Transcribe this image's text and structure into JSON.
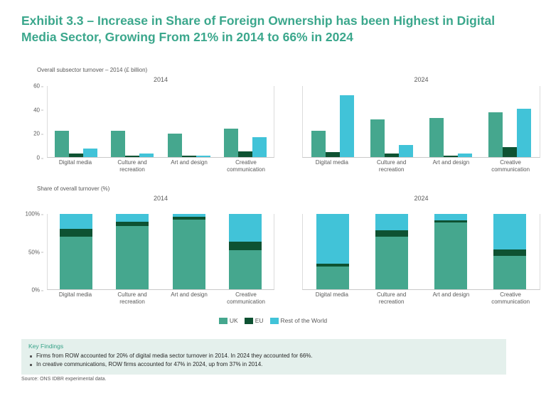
{
  "title": "Exhibit 3.3 – Increase in Share of Foreign Ownership has been Highest in Digital Media Sector, Growing From 21% in 2014 to 66% in 2024",
  "colors": {
    "title_accent": "#3BA78C",
    "uk": "#45A78E",
    "eu": "#0E5232",
    "rest_of_world": "#41C3D8",
    "key_findings_background": "#E4F0EC",
    "axis_text": "#595959"
  },
  "legend": [
    {
      "name": "UK",
      "color": "#45A78E"
    },
    {
      "name": "EU",
      "color": "#0E5232"
    },
    {
      "name": "Rest of the World",
      "color": "#41C3D8"
    }
  ],
  "chart_data": [
    {
      "type": "bar",
      "title": "Overall subsector turnover – 2014 (£ billion)",
      "categories": [
        "Digital media",
        "Culture and recreation",
        "Art and design",
        "Creative communication"
      ],
      "ylim": [
        0,
        60
      ],
      "grid": false,
      "legend_position": "bottom-center",
      "yticks": [
        {
          "label": "0",
          "value": 0
        },
        {
          "label": "20",
          "value": 20
        },
        {
          "label": "40",
          "value": 40
        },
        {
          "label": "60",
          "value": 60
        }
      ],
      "panels": [
        {
          "title": "2014",
          "series": [
            {
              "name": "UK",
              "values": [
                22.5,
                22,
                20,
                24
              ]
            },
            {
              "name": "EU",
              "values": [
                3,
                1.5,
                1,
                5
              ]
            },
            {
              "name": "Rest of the World",
              "values": [
                7,
                3,
                1,
                17
              ]
            }
          ]
        },
        {
          "title": "2024",
          "series": [
            {
              "name": "UK",
              "values": [
                22.5,
                32,
                33,
                38
              ]
            },
            {
              "name": "EU",
              "values": [
                4,
                3,
                1,
                8.5
              ]
            },
            {
              "name": "Rest of the World",
              "values": [
                52,
                10,
                3,
                41
              ]
            }
          ]
        }
      ]
    },
    {
      "type": "stacked-bar",
      "title": "Share of overall turnover (%)",
      "categories": [
        "Digital media",
        "Culture and recreation",
        "Art and design",
        "Creative communication"
      ],
      "ylim": [
        0,
        100
      ],
      "grid": false,
      "legend_position": "bottom-center",
      "yticks": [
        {
          "label": "0%",
          "value": 0
        },
        {
          "label": "50%",
          "value": 50
        },
        {
          "label": "100%",
          "value": 100
        }
      ],
      "panels": [
        {
          "title": "2014",
          "series": [
            {
              "name": "UK",
              "values": [
                70,
                84,
                92,
                52
              ]
            },
            {
              "name": "EU",
              "values": [
                10,
                6,
                4,
                11
              ]
            },
            {
              "name": "Rest of the World",
              "values": [
                20,
                10,
                4,
                37
              ]
            }
          ]
        },
        {
          "title": "2024",
          "series": [
            {
              "name": "UK",
              "values": [
                30,
                70,
                89,
                44
              ]
            },
            {
              "name": "EU",
              "values": [
                4,
                8,
                3,
                9
              ]
            },
            {
              "name": "Rest of the World",
              "values": [
                66,
                22,
                8,
                47
              ]
            }
          ]
        }
      ]
    }
  ],
  "key_findings": {
    "heading": "Key Findings",
    "bullets": [
      "Firms from ROW accounted for 20% of digital media sector turnover in 2014. In 2024 they accounted for 66%.",
      "In creative communications, ROW firms accounted for 47% in 2024, up from 37% in 2014."
    ]
  },
  "source": "Source: ONS IDBR experimental data."
}
